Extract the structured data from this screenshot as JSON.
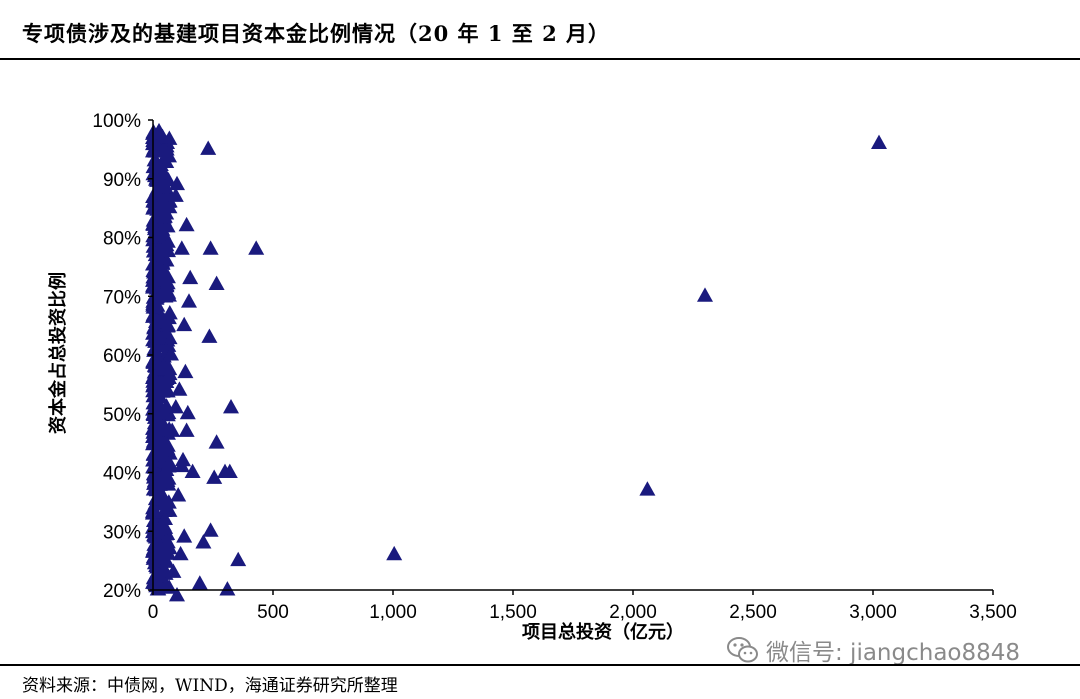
{
  "title": "专项债涉及的基建项目资本金比例情况（20 年 1 至 2 月）",
  "source": "资料来源：中债网，WIND，海通证券研究所整理",
  "watermark": {
    "text": "微信号: jiangchao8848",
    "icon": "wechat-icon"
  },
  "colors": {
    "marker": "#1a1a7e",
    "axis": "#000000",
    "text": "#000000",
    "watermark": "#8a8a8a"
  },
  "chart_data": {
    "type": "scatter",
    "xlabel": "项目总投资（亿元）",
    "ylabel": "资本金占总投资比例",
    "xlim": [
      0,
      3500
    ],
    "ylim": [
      0.2,
      1.0
    ],
    "xticks": [
      0,
      500,
      1000,
      1500,
      2000,
      2500,
      3000,
      3500
    ],
    "xtick_labels": [
      "0",
      "500",
      "1,000",
      "1,500",
      "2,000",
      "2,500",
      "3,000",
      "3,500"
    ],
    "yticks": [
      0.2,
      0.3,
      0.4,
      0.5,
      0.6,
      0.7,
      0.8,
      0.9,
      1.0
    ],
    "ytick_labels": [
      "20%",
      "30%",
      "40%",
      "50%",
      "60%",
      "70%",
      "80%",
      "90%",
      "100%"
    ],
    "grid": false,
    "legend": false,
    "marker": "triangle",
    "series": [
      {
        "points": [
          [
            3025,
            0.96
          ],
          [
            2300,
            0.7
          ],
          [
            2060,
            0.37
          ],
          [
            1005,
            0.26
          ],
          [
            430,
            0.78
          ],
          [
            230,
            0.95
          ],
          [
            325,
            0.51
          ],
          [
            265,
            0.72
          ],
          [
            240,
            0.78
          ],
          [
            235,
            0.63
          ],
          [
            320,
            0.4
          ],
          [
            300,
            0.4
          ],
          [
            265,
            0.45
          ],
          [
            255,
            0.39
          ],
          [
            240,
            0.3
          ],
          [
            355,
            0.25
          ],
          [
            310,
            0.2
          ],
          [
            210,
            0.28
          ],
          [
            195,
            0.21
          ],
          [
            165,
            0.4
          ],
          [
            155,
            0.73
          ],
          [
            150,
            0.69
          ],
          [
            145,
            0.5
          ],
          [
            140,
            0.82
          ],
          [
            140,
            0.47
          ],
          [
            135,
            0.57
          ],
          [
            130,
            0.65
          ],
          [
            130,
            0.29
          ],
          [
            125,
            0.42
          ],
          [
            120,
            0.78
          ],
          [
            120,
            0.41
          ],
          [
            115,
            0.26
          ],
          [
            110,
            0.54
          ],
          [
            105,
            0.36
          ],
          [
            100,
            0.89
          ],
          [
            100,
            0.19
          ],
          [
            95,
            0.87
          ],
          [
            95,
            0.51
          ],
          [
            85,
            0.23
          ],
          [
            80,
            0.47
          ],
          [
            75,
            0.6
          ],
          [
            70,
            0.67
          ],
          [
            60,
            0.94
          ],
          [
            55,
            0.84
          ],
          [
            50,
            0.32
          ],
          [
            45,
            0.74
          ],
          [
            40,
            0.97
          ],
          [
            35,
            0.55
          ],
          [
            30,
            0.44
          ],
          [
            25,
            0.98
          ],
          [
            20,
            0.63
          ],
          [
            15,
            0.9
          ]
        ]
      }
    ]
  }
}
